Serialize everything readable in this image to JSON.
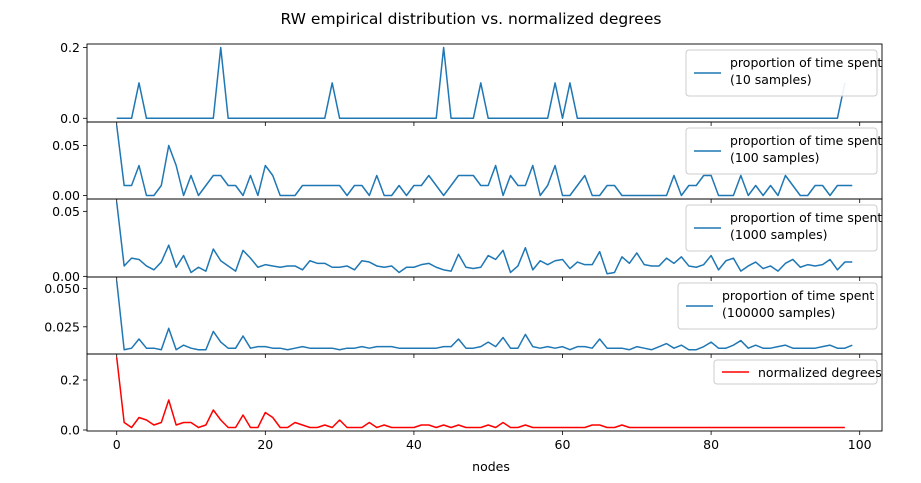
{
  "figure": {
    "title": "RW empirical distribution vs. normalized degrees",
    "xlabel": "nodes"
  },
  "chart_data": [
    {
      "type": "line",
      "legend": "proportion of time spent\n (10 samples)",
      "legend_lines": [
        "proportion of time spent",
        " (10 samples)"
      ],
      "legend_position": "upper-right",
      "color": "#1f77b4",
      "xlim": [
        -4,
        103
      ],
      "ylim": [
        -0.0105,
        0.21
      ],
      "yticks": [
        0.0,
        0.2
      ],
      "ytick_labels": [
        "0.0",
        "0.2"
      ],
      "x_start": 0,
      "values": [
        0,
        0,
        0,
        0.1,
        0,
        0,
        0,
        0,
        0,
        0,
        0,
        0,
        0,
        0,
        0.2,
        0,
        0,
        0,
        0,
        0,
        0,
        0,
        0,
        0,
        0,
        0,
        0,
        0,
        0,
        0.1,
        0,
        0,
        0,
        0,
        0,
        0,
        0,
        0,
        0,
        0,
        0,
        0,
        0,
        0,
        0.2,
        0,
        0,
        0,
        0,
        0.1,
        0,
        0,
        0,
        0,
        0,
        0,
        0,
        0,
        0,
        0.1,
        0,
        0.1,
        0,
        0,
        0,
        0,
        0,
        0,
        0,
        0,
        0,
        0,
        0,
        0,
        0,
        0,
        0,
        0,
        0,
        0,
        0,
        0,
        0,
        0,
        0,
        0,
        0,
        0,
        0,
        0,
        0,
        0,
        0,
        0,
        0,
        0,
        0,
        0,
        0.1
      ]
    },
    {
      "type": "line",
      "legend": "proportion of time spent\n (100 samples)",
      "legend_lines": [
        "proportion of time spent",
        " (100 samples)"
      ],
      "legend_position": "upper-right",
      "color": "#1f77b4",
      "xlim": [
        -4,
        103
      ],
      "ylim": [
        -0.0035,
        0.0735
      ],
      "yticks": [
        0.0,
        0.05
      ],
      "ytick_labels": [
        "0.00",
        "0.05"
      ],
      "x_start": 0,
      "values": [
        0.07,
        0.01,
        0.01,
        0.03,
        0,
        0,
        0.01,
        0.05,
        0.03,
        0,
        0.02,
        0,
        0.01,
        0.02,
        0.02,
        0.01,
        0.01,
        0,
        0.02,
        0,
        0.03,
        0.02,
        0,
        0,
        0,
        0.01,
        0.01,
        0.01,
        0.01,
        0.01,
        0.01,
        0,
        0.01,
        0.01,
        0,
        0.02,
        0,
        0,
        0.01,
        0,
        0.01,
        0.01,
        0.02,
        0.01,
        0,
        0.01,
        0.02,
        0.02,
        0.02,
        0.01,
        0.01,
        0.03,
        0,
        0.02,
        0.01,
        0.01,
        0.03,
        0,
        0.01,
        0.03,
        0,
        0,
        0.01,
        0.02,
        0,
        0,
        0.01,
        0.01,
        0,
        0,
        0,
        0,
        0,
        0,
        0,
        0.02,
        0,
        0.01,
        0.01,
        0.02,
        0.02,
        0,
        0,
        0,
        0.02,
        0,
        0.01,
        0,
        0.01,
        0,
        0.02,
        0.01,
        0,
        0,
        0.01,
        0.01,
        0,
        0.01,
        0.01,
        0.01
      ]
    },
    {
      "type": "line",
      "legend": "proportion of time spent\n (1000 samples)",
      "legend_lines": [
        "proportion of time spent",
        " (1000 samples)"
      ],
      "legend_position": "upper-right",
      "color": "#1f77b4",
      "xlim": [
        -4,
        103
      ],
      "ylim": [
        -0.0005,
        0.0595
      ],
      "yticks": [
        0.0,
        0.05
      ],
      "ytick_labels": [
        "0.00",
        "0.05"
      ],
      "x_start": 0,
      "values": [
        0.057,
        0.008,
        0.014,
        0.013,
        0.008,
        0.005,
        0.011,
        0.024,
        0.007,
        0.016,
        0.003,
        0.007,
        0.004,
        0.021,
        0.012,
        0.008,
        0.004,
        0.02,
        0.014,
        0.007,
        0.009,
        0.008,
        0.007,
        0.008,
        0.008,
        0.005,
        0.012,
        0.01,
        0.01,
        0.007,
        0.007,
        0.008,
        0.005,
        0.012,
        0.011,
        0.008,
        0.007,
        0.008,
        0.003,
        0.007,
        0.007,
        0.009,
        0.01,
        0.007,
        0.005,
        0.004,
        0.017,
        0.007,
        0.006,
        0.007,
        0.016,
        0.013,
        0.02,
        0.003,
        0.008,
        0.022,
        0.005,
        0.012,
        0.009,
        0.012,
        0.013,
        0.006,
        0.011,
        0.009,
        0.009,
        0.019,
        0.002,
        0.003,
        0.015,
        0.01,
        0.018,
        0.009,
        0.008,
        0.008,
        0.014,
        0.01,
        0.015,
        0.008,
        0.007,
        0.009,
        0.016,
        0.005,
        0.012,
        0.014,
        0.004,
        0.008,
        0.011,
        0.006,
        0.008,
        0.004,
        0.01,
        0.013,
        0.007,
        0.009,
        0.008,
        0.009,
        0.013,
        0.005,
        0.011,
        0.011
      ]
    },
    {
      "type": "line",
      "legend": "proportion of time spent\n (100000 samples)",
      "legend_lines": [
        "proportion of time spent",
        " (100000 samples)"
      ],
      "legend_position": "upper-right",
      "color": "#1f77b4",
      "xlim": [
        -4,
        103
      ],
      "ylim": [
        0.0072,
        0.0576
      ],
      "yticks": [
        0.025,
        0.05
      ],
      "ytick_labels": [
        "0.025",
        "0.050"
      ],
      "x_start": 0,
      "values": [
        0.055,
        0.01,
        0.011,
        0.017,
        0.011,
        0.011,
        0.01,
        0.024,
        0.01,
        0.013,
        0.011,
        0.01,
        0.01,
        0.022,
        0.015,
        0.011,
        0.011,
        0.019,
        0.011,
        0.012,
        0.012,
        0.011,
        0.011,
        0.01,
        0.011,
        0.012,
        0.011,
        0.011,
        0.011,
        0.011,
        0.01,
        0.011,
        0.011,
        0.012,
        0.011,
        0.012,
        0.012,
        0.012,
        0.011,
        0.011,
        0.011,
        0.011,
        0.011,
        0.011,
        0.012,
        0.012,
        0.017,
        0.011,
        0.011,
        0.012,
        0.015,
        0.012,
        0.018,
        0.011,
        0.011,
        0.02,
        0.012,
        0.011,
        0.012,
        0.011,
        0.012,
        0.01,
        0.012,
        0.012,
        0.011,
        0.017,
        0.011,
        0.011,
        0.011,
        0.01,
        0.012,
        0.011,
        0.01,
        0.012,
        0.014,
        0.011,
        0.013,
        0.01,
        0.01,
        0.012,
        0.015,
        0.011,
        0.011,
        0.013,
        0.016,
        0.011,
        0.013,
        0.011,
        0.011,
        0.012,
        0.013,
        0.011,
        0.011,
        0.011,
        0.011,
        0.012,
        0.013,
        0.011,
        0.011,
        0.013
      ]
    },
    {
      "type": "line",
      "legend": "normalized degrees",
      "legend_lines": [
        "normalized degrees"
      ],
      "legend_position": "upper-right",
      "color": "#ff0000",
      "xlim": [
        -4,
        103
      ],
      "ylim": [
        -0.004,
        0.304
      ],
      "yticks": [
        0.0,
        0.2
      ],
      "ytick_labels": [
        "0.0",
        "0.2"
      ],
      "xticks": [
        0,
        20,
        40,
        60,
        80,
        100
      ],
      "xtick_labels": [
        "0",
        "20",
        "40",
        "60",
        "80",
        "100"
      ],
      "x_start": 0,
      "values": [
        0.29,
        0.03,
        0.01,
        0.05,
        0.04,
        0.02,
        0.03,
        0.12,
        0.02,
        0.03,
        0.03,
        0.01,
        0.02,
        0.08,
        0.04,
        0.01,
        0.01,
        0.06,
        0.01,
        0.01,
        0.07,
        0.05,
        0.01,
        0.01,
        0.03,
        0.02,
        0.01,
        0.01,
        0.02,
        0.01,
        0.04,
        0.01,
        0.01,
        0.01,
        0.03,
        0.01,
        0.02,
        0.01,
        0.01,
        0.01,
        0.01,
        0.02,
        0.02,
        0.01,
        0.02,
        0.01,
        0.02,
        0.01,
        0.01,
        0.01,
        0.02,
        0.01,
        0.03,
        0.01,
        0.01,
        0.02,
        0.01,
        0.01,
        0.01,
        0.01,
        0.01,
        0.01,
        0.01,
        0.01,
        0.02,
        0.02,
        0.01,
        0.01,
        0.02,
        0.01,
        0.01,
        0.01,
        0.01,
        0.01,
        0.01,
        0.01,
        0.01,
        0.01,
        0.01,
        0.01,
        0.01,
        0.01,
        0.01,
        0.01,
        0.01,
        0.01,
        0.01,
        0.01,
        0.01,
        0.01,
        0.01,
        0.01,
        0.01,
        0.01,
        0.01,
        0.01,
        0.01,
        0.01,
        0.01
      ]
    }
  ]
}
